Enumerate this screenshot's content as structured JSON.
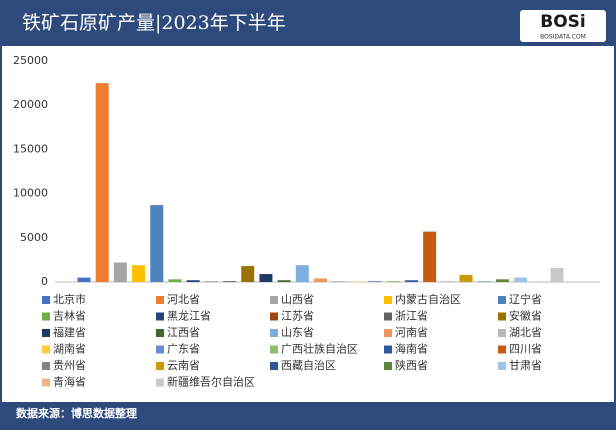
{
  "chart_data": {
    "type": "bar",
    "title": "铁矿石原矿产量|2023年下半年",
    "source": "数据来源：博思数据整理",
    "categories": [
      null
    ],
    "ylim": [
      0,
      25000
    ],
    "yticks": [
      0,
      5000,
      10000,
      15000,
      20000,
      25000
    ],
    "grid": false,
    "legend": "bottom",
    "series": [
      {
        "name": "北京市",
        "color": "#4472C4",
        "values": [
          500
        ]
      },
      {
        "name": "河北省",
        "color": "#ED7D31",
        "values": [
          22500
        ]
      },
      {
        "name": "山西省",
        "color": "#A5A5A5",
        "values": [
          2200
        ]
      },
      {
        "name": "内蒙古自治区",
        "color": "#FFC000",
        "values": [
          1900
        ]
      },
      {
        "name": "辽宁省",
        "color": "#4F81BD",
        "values": [
          8700
        ]
      },
      {
        "name": "吉林省",
        "color": "#70AD47",
        "values": [
          300
        ]
      },
      {
        "name": "黑龙江省",
        "color": "#264478",
        "values": [
          200
        ]
      },
      {
        "name": "江苏省",
        "color": "#9E480E",
        "values": [
          50
        ]
      },
      {
        "name": "浙江省",
        "color": "#636363",
        "values": [
          100
        ]
      },
      {
        "name": "安徽省",
        "color": "#997300",
        "values": [
          1800
        ]
      },
      {
        "name": "福建省",
        "color": "#1F3864",
        "values": [
          900
        ]
      },
      {
        "name": "江西省",
        "color": "#43682B",
        "values": [
          200
        ]
      },
      {
        "name": "山东省",
        "color": "#7CAFDD",
        "values": [
          1900
        ]
      },
      {
        "name": "河南省",
        "color": "#F1975A",
        "values": [
          400
        ]
      },
      {
        "name": "湖北省",
        "color": "#B7B7B7",
        "values": [
          100
        ]
      },
      {
        "name": "湖南省",
        "color": "#FFCD33",
        "values": [
          50
        ]
      },
      {
        "name": "广东省",
        "color": "#698ED0",
        "values": [
          100
        ]
      },
      {
        "name": "广西壮族自治区",
        "color": "#8CC168",
        "values": [
          100
        ]
      },
      {
        "name": "海南省",
        "color": "#335AA1",
        "values": [
          200
        ]
      },
      {
        "name": "四川省",
        "color": "#C55A11",
        "values": [
          5700
        ]
      },
      {
        "name": "贵州省",
        "color": "#848484",
        "values": [
          50
        ]
      },
      {
        "name": "云南省",
        "color": "#CC9A00",
        "values": [
          800
        ]
      },
      {
        "name": "西藏自治区",
        "color": "#2F5597",
        "values": [
          50
        ]
      },
      {
        "name": "陕西省",
        "color": "#5A8A39",
        "values": [
          300
        ]
      },
      {
        "name": "甘肃省",
        "color": "#9DC3E6",
        "values": [
          500
        ]
      },
      {
        "name": "青海省",
        "color": "#F4B183",
        "values": [
          50
        ]
      },
      {
        "name": "新疆维吾尔自治区",
        "color": "#C9C9C9",
        "values": [
          1600
        ]
      }
    ]
  },
  "logo": {
    "text": "BOSi",
    "sub": "BOSIDATA.COM"
  }
}
